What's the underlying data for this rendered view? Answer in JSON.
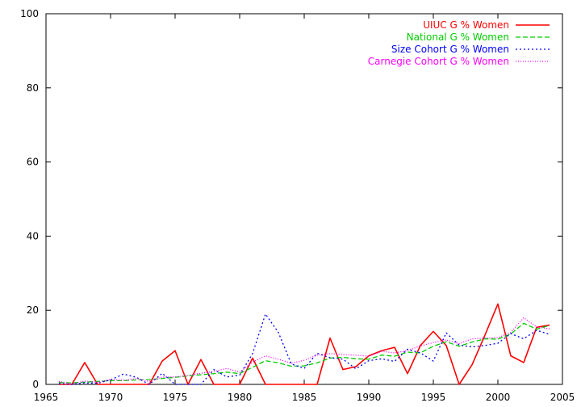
{
  "chart_data": {
    "type": "line",
    "title": "",
    "xlabel": "",
    "ylabel": "",
    "xlim": [
      1965,
      2005
    ],
    "ylim": [
      0,
      100
    ],
    "x_ticks": [
      1965,
      1970,
      1975,
      1980,
      1985,
      1990,
      1995,
      2000,
      2005
    ],
    "y_ticks": [
      0,
      20,
      40,
      60,
      80,
      100
    ],
    "grid": false,
    "legend_position": "top-right",
    "x": [
      1966,
      1967,
      1968,
      1969,
      1970,
      1971,
      1972,
      1973,
      1974,
      1975,
      1976,
      1977,
      1978,
      1979,
      1980,
      1981,
      1982,
      1983,
      1984,
      1985,
      1986,
      1987,
      1988,
      1989,
      1990,
      1991,
      1992,
      1993,
      1994,
      1995,
      1996,
      1997,
      1998,
      1999,
      2000,
      2001,
      2002,
      2003,
      2004
    ],
    "series": [
      {
        "name": "UIUC G % Women",
        "color": "#ff0000",
        "dash": "",
        "values": [
          0.0,
          0.0,
          5.9,
          0.0,
          0.0,
          0.0,
          0.0,
          0.0,
          6.3,
          9.1,
          0.0,
          6.7,
          0.0,
          0.0,
          0.0,
          7.1,
          0.0,
          0.0,
          0.0,
          0.0,
          0.0,
          12.5,
          4.0,
          4.8,
          7.7,
          9.1,
          10.0,
          2.9,
          10.5,
          14.3,
          10.5,
          0.0,
          5.3,
          13.3,
          21.7,
          7.7,
          5.9,
          15.4,
          16.0
        ]
      },
      {
        "name": "National G % Women",
        "color": "#00cc00",
        "dash": "6,3",
        "values": [
          0.5,
          0.4,
          0.6,
          0.8,
          1.0,
          1.0,
          1.2,
          1.3,
          1.6,
          1.9,
          2.3,
          2.6,
          2.9,
          3.3,
          2.9,
          4.6,
          6.4,
          5.8,
          4.9,
          5.0,
          5.8,
          7.1,
          7.3,
          6.9,
          6.8,
          7.9,
          7.6,
          8.7,
          8.5,
          10.3,
          11.5,
          10.3,
          11.4,
          12.3,
          12.2,
          13.6,
          16.5,
          14.9,
          15.9
        ]
      },
      {
        "name": "Size Cohort G % Women",
        "color": "#0000ff",
        "dash": "2,3",
        "values": [
          0.2,
          0.0,
          0.4,
          0.3,
          1.2,
          2.8,
          1.9,
          0.0,
          3.0,
          0.0,
          0.0,
          0.0,
          4.0,
          2.0,
          2.5,
          8.3,
          19.0,
          14.0,
          5.5,
          4.3,
          8.4,
          7.2,
          6.8,
          4.2,
          6.4,
          6.9,
          6.2,
          9.5,
          8.5,
          6.3,
          13.9,
          10.6,
          10.1,
          10.5,
          11.1,
          13.7,
          12.3,
          14.6,
          13.5
        ]
      },
      {
        "name": "Carnegie Cohort G % Women",
        "color": "#ff00ff",
        "dash": "1,2",
        "values": [
          0.8,
          0.1,
          0.9,
          0.6,
          1.3,
          1.1,
          1.6,
          0.8,
          2.0,
          2.0,
          2.4,
          3.0,
          3.5,
          4.3,
          3.3,
          6.0,
          7.7,
          6.8,
          5.7,
          6.5,
          7.9,
          8.3,
          8.0,
          7.9,
          7.6,
          8.9,
          8.5,
          9.1,
          10.4,
          11.3,
          12.0,
          11.0,
          12.3,
          12.5,
          12.6,
          14.0,
          18.0,
          15.5,
          15.0
        ]
      }
    ]
  }
}
